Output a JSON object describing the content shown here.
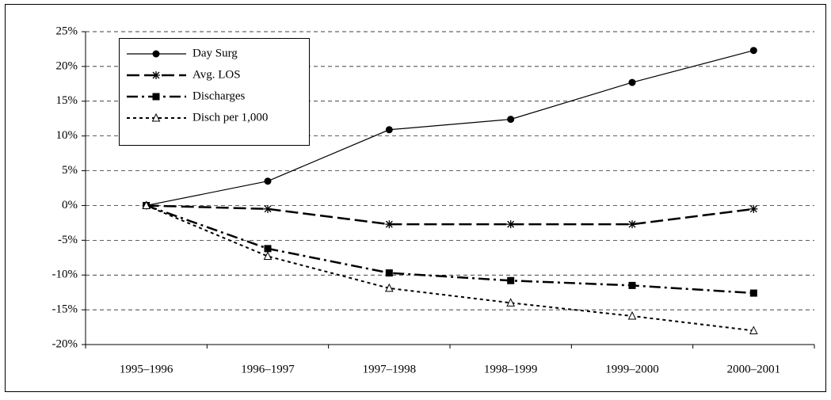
{
  "chart_data": {
    "type": "line",
    "categories": [
      "1995–1996",
      "1996–1997",
      "1997–1998",
      "1998–1999",
      "1999–2000",
      "2000–2001"
    ],
    "series": [
      {
        "name": "Day Surg",
        "color": "#000000",
        "marker": "circle",
        "dash": "solid",
        "values": [
          0,
          3.5,
          10.9,
          12.4,
          17.7,
          22.3
        ]
      },
      {
        "name": "Avg. LOS",
        "color": "#000000",
        "marker": "asterisk",
        "dash": "long-dash",
        "values": [
          0,
          -0.5,
          -2.7,
          -2.7,
          -2.7,
          -0.5
        ]
      },
      {
        "name": "Discharges",
        "color": "#000000",
        "marker": "square",
        "dash": "dash-dot",
        "values": [
          0,
          -6.2,
          -9.7,
          -10.8,
          -11.5,
          -12.6
        ]
      },
      {
        "name": "Disch per 1,000",
        "color": "#000000",
        "marker": "open-triangle",
        "dash": "dotted",
        "values": [
          0,
          -7.3,
          -11.9,
          -14,
          -15.9,
          -18
        ]
      }
    ],
    "ylim": [
      -20,
      25
    ],
    "yticks": [
      {
        "value": -20,
        "label": "-20%"
      },
      {
        "value": -15,
        "label": "-15%"
      },
      {
        "value": -10,
        "label": "-10%"
      },
      {
        "value": -5,
        "label": "-5%"
      },
      {
        "value": 0,
        "label": "0%"
      },
      {
        "value": 5,
        "label": "5%"
      },
      {
        "value": 10,
        "label": "10%"
      },
      {
        "value": 15,
        "label": "15%"
      },
      {
        "value": 20,
        "label": "20%"
      },
      {
        "value": 25,
        "label": "25%"
      }
    ],
    "grid": true,
    "legend": "upper-left"
  }
}
